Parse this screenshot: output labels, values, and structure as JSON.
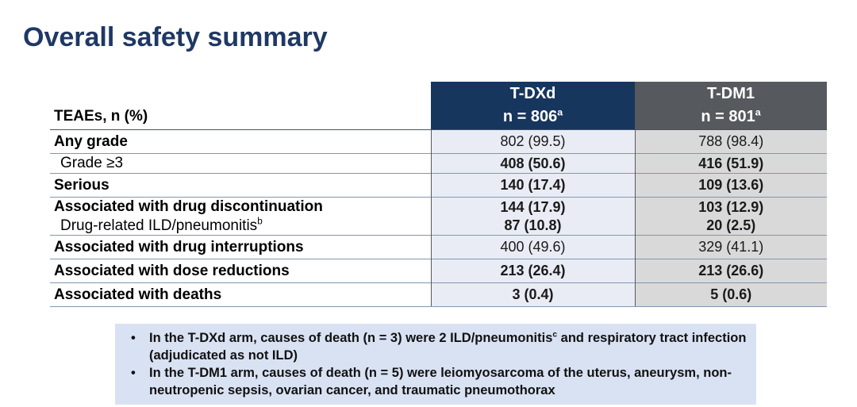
{
  "page": {
    "title": "Overall safety summary"
  },
  "colors": {
    "title_navy": "#1F3864",
    "tdxd_header_bg": "#17365D",
    "tdm1_header_bg": "#56595E",
    "tdxd_column_bg": "#E9ECF5",
    "tdm1_column_bg": "#D9D9D9",
    "row_border": "#8496B0",
    "callout_bg": "#D9E2F3"
  },
  "table": {
    "row_header_label": "TEAEs, n (%)",
    "columns": [
      {
        "name": "T-DXd",
        "n_label": "n = 806",
        "n_sup": "a"
      },
      {
        "name": "T-DM1",
        "n_label": "n = 801",
        "n_sup": "a"
      }
    ],
    "rows": [
      {
        "label": "Any grade",
        "sup": "",
        "values": [
          "802 (99.5)",
          "788 (98.4)"
        ]
      },
      {
        "label": "Grade ≥3",
        "sup": "",
        "values": [
          "408 (50.6)",
          "416 (51.9)"
        ]
      },
      {
        "label": "Serious",
        "sup": "",
        "values": [
          "140 (17.4)",
          "109 (13.6)"
        ]
      },
      {
        "label": "Associated with drug discontinuation",
        "sup": "",
        "values": [
          "144 (17.9)",
          "103 (12.9)"
        ]
      },
      {
        "label": "Drug-related ILD/pneumonitis",
        "sup": "b",
        "values": [
          "87 (10.8)",
          "20 (2.5)"
        ]
      },
      {
        "label": "Associated with drug interruptions",
        "sup": "",
        "values": [
          "400 (49.6)",
          "329 (41.1)"
        ]
      },
      {
        "label": "Associated with dose reductions",
        "sup": "",
        "values": [
          "213 (26.4)",
          "213 (26.6)"
        ]
      },
      {
        "label": "Associated with deaths",
        "sup": "",
        "values": [
          "3 (0.4)",
          "5 (0.6)"
        ]
      }
    ]
  },
  "callout": {
    "bullet_glyph": "•",
    "bullets": [
      {
        "text_before_sup": "In the T-DXd arm, causes of death (n = 3) were 2 ILD/pneumonitis",
        "sup": "c",
        "text_after_sup": " and respiratory tract infection (adjudicated as not ILD)"
      },
      {
        "text_before_sup": "In the T-DM1 arm, causes of death (n = 5) were leiomyosarcoma of the uterus, aneurysm, non-neutropenic sepsis, ovarian cancer, and traumatic pneumothorax",
        "sup": "",
        "text_after_sup": ""
      }
    ]
  }
}
